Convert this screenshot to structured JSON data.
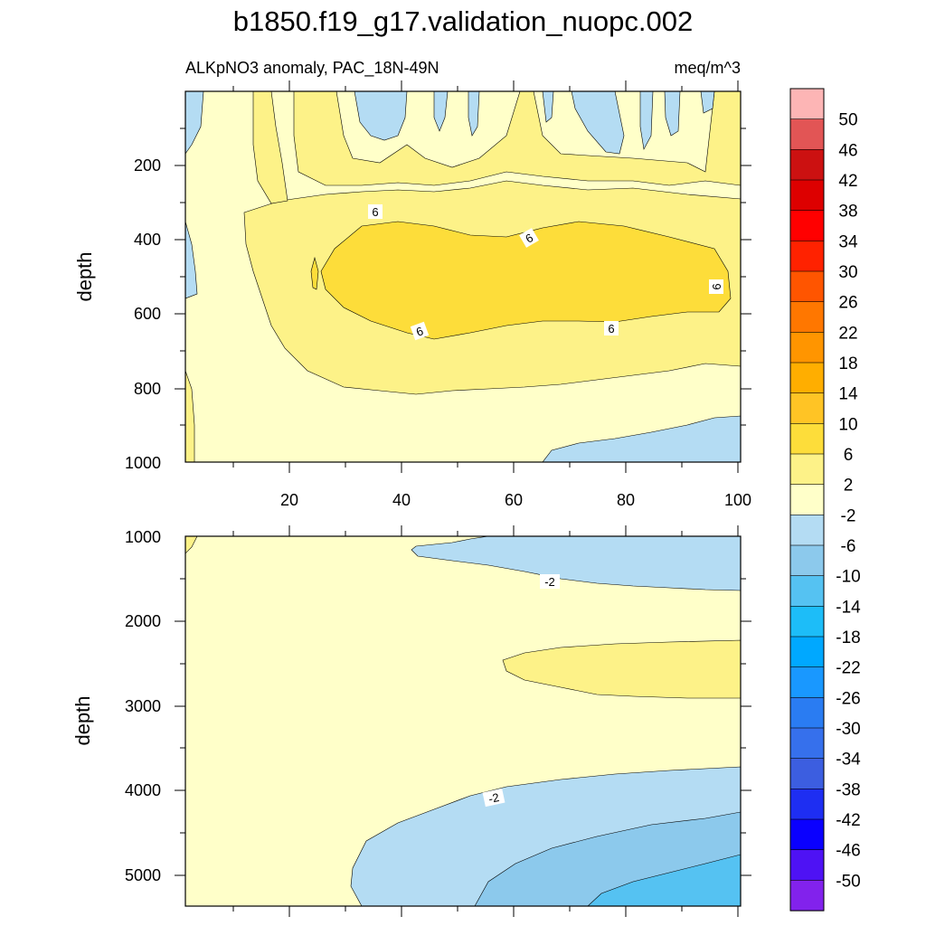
{
  "chart_data": {
    "type": "heatmap",
    "title": "b1850.f19_g17.validation_nuopc.002",
    "subtitle_left": "ALKpNO3 anomaly, PAC_18N-49N",
    "subtitle_right": "meq/m^3",
    "xlabel": "",
    "x_ticks": [
      "20",
      "40",
      "60",
      "80",
      "100"
    ],
    "x_range": [
      1,
      101
    ],
    "panels": [
      {
        "name": "upper",
        "ylabel": "depth",
        "ylim": [
          0,
          1000
        ],
        "y_ticks": [
          "200",
          "400",
          "600",
          "800",
          "1000"
        ],
        "contour_labels": [
          "6",
          "6",
          "6",
          "6",
          "6",
          "6"
        ]
      },
      {
        "name": "lower",
        "ylabel": "depth",
        "ylim": [
          1000,
          5375
        ],
        "y_ticks": [
          "1000",
          "2000",
          "3000",
          "4000",
          "5000"
        ],
        "contour_labels": [
          "-2",
          "-2"
        ]
      }
    ],
    "colorbar": {
      "labels": [
        "50",
        "46",
        "42",
        "38",
        "34",
        "30",
        "26",
        "22",
        "18",
        "14",
        "10",
        "6",
        "2",
        "-2",
        "-6",
        "-10",
        "-14",
        "-18",
        "-22",
        "-26",
        "-30",
        "-34",
        "-38",
        "-42",
        "-46",
        "-50"
      ],
      "colors": [
        "#fdb5b5",
        "#e25555",
        "#cc1111",
        "#dd0000",
        "#ff0000",
        "#ff2200",
        "#ff5500",
        "#ff7700",
        "#ff9500",
        "#ffae00",
        "#ffc425",
        "#fddd3a",
        "#fdf288",
        "#ffffc9",
        "#b4dcf3",
        "#8cc9ec",
        "#55c2f2",
        "#1dbdf8",
        "#00a8ff",
        "#1998ff",
        "#2a7cf2",
        "#3670ec",
        "#3c5ee0",
        "#1e2ef2",
        "#0a00ff",
        "#4e12f4",
        "#8222ec"
      ]
    }
  }
}
